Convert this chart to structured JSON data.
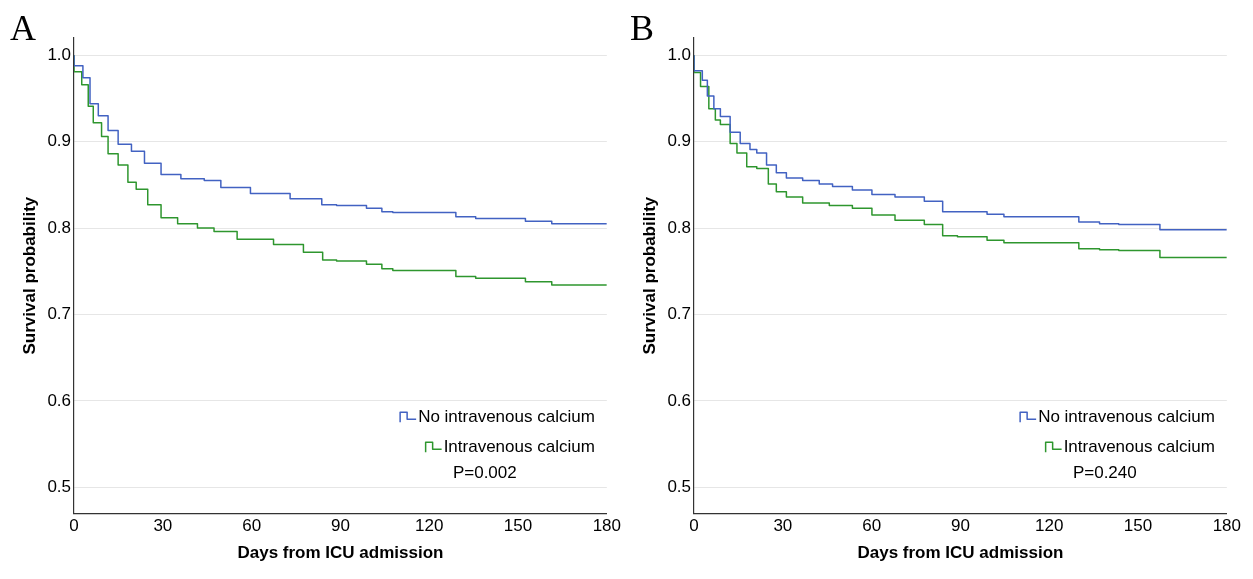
{
  "chart_data": [
    {
      "type": "step",
      "title": "A",
      "xlabel": "Days from ICU admission",
      "ylabel": "Survival probability",
      "xlim": [
        0,
        180
      ],
      "xticks": [
        0,
        30,
        60,
        90,
        120,
        150,
        180
      ],
      "ylim": [
        0.47,
        1.02
      ],
      "yticks": [
        {
          "value": 0.5,
          "label": "0.5"
        },
        {
          "value": 0.6,
          "label": "0.6"
        },
        {
          "value": 0.7,
          "label": "0.7"
        },
        {
          "value": 0.8,
          "label": "0.8"
        },
        {
          "value": 0.9,
          "label": "0.9"
        },
        {
          "value": 1,
          "label": "1.0"
        }
      ],
      "grid": "y",
      "legend": "bottom right",
      "annotations": [
        "P=0.002"
      ],
      "series": [
        {
          "name": "No intravenous calcium",
          "color": "#4262c2",
          "x": [
            0,
            3,
            5.4,
            8.2,
            11.5,
            14.9,
            19.4,
            23.8,
            29.4,
            36.1,
            44,
            49.6,
            59.6,
            73,
            83.7,
            88.7,
            98.8,
            104,
            107.7,
            129,
            135.7,
            152.5,
            161.4,
            172.6,
            180
          ],
          "values": [
            1,
            0.988,
            0.974,
            0.944,
            0.93,
            0.913,
            0.897,
            0.889,
            0.875,
            0.862,
            0.857,
            0.855,
            0.847,
            0.84,
            0.834,
            0.827,
            0.826,
            0.823,
            0.819,
            0.818,
            0.813,
            0.811,
            0.808,
            0.805,
            0.805
          ]
        },
        {
          "name": "Intravenous calcium",
          "color": "#2e962e",
          "x": [
            0,
            2.6,
            4.8,
            6.5,
            9.3,
            11.5,
            14.9,
            18.2,
            21,
            24.9,
            29.4,
            35,
            41.7,
            47.3,
            55.1,
            67.4,
            77.5,
            84,
            88.7,
            98.8,
            104,
            107.7,
            129,
            135.7,
            152.5,
            161.4,
            172.6,
            180
          ],
          "values": [
            1,
            0.981,
            0.966,
            0.941,
            0.922,
            0.906,
            0.886,
            0.873,
            0.853,
            0.845,
            0.827,
            0.812,
            0.805,
            0.8,
            0.796,
            0.787,
            0.781,
            0.772,
            0.763,
            0.762,
            0.758,
            0.753,
            0.751,
            0.744,
            0.742,
            0.738,
            0.734,
            0.734
          ]
        }
      ]
    },
    {
      "type": "step",
      "title": "B",
      "xlabel": "Days from ICU admission",
      "ylabel": "Survival probability",
      "xlim": [
        0,
        180
      ],
      "xticks": [
        0,
        30,
        60,
        90,
        120,
        150,
        180
      ],
      "ylim": [
        0.47,
        1.02
      ],
      "yticks": [
        {
          "value": 0.5,
          "label": "0.5"
        },
        {
          "value": 0.6,
          "label": "0.6"
        },
        {
          "value": 0.7,
          "label": "0.7"
        },
        {
          "value": 0.8,
          "label": "0.8"
        },
        {
          "value": 0.9,
          "label": "0.9"
        },
        {
          "value": 1,
          "label": "1.0"
        }
      ],
      "grid": "y",
      "legend": "bottom right",
      "annotations": [
        "P=0.240"
      ],
      "series": [
        {
          "name": "No intravenous calcium",
          "color": "#4262c2",
          "x": [
            0,
            2.8,
            4.5,
            6.7,
            8.9,
            12.2,
            15.6,
            18.9,
            21.2,
            24.5,
            27.8,
            31.2,
            36.7,
            42.3,
            46.8,
            53.5,
            60.1,
            67.9,
            77.8,
            84,
            89,
            99,
            104.7,
            108,
            130,
            137,
            143.5,
            157.4,
            162.4,
            180
          ],
          "values": [
            1,
            0.982,
            0.971,
            0.953,
            0.938,
            0.929,
            0.911,
            0.898,
            0.891,
            0.887,
            0.873,
            0.864,
            0.858,
            0.855,
            0.851,
            0.848,
            0.844,
            0.839,
            0.836,
            0.831,
            0.819,
            0.819,
            0.816,
            0.813,
            0.813,
            0.807,
            0.805,
            0.804,
            0.798,
            0.798
          ]
        },
        {
          "name": "Intravenous calcium",
          "color": "#2e962e",
          "x": [
            0,
            2.2,
            5,
            7.2,
            8.9,
            12.2,
            14.5,
            17.8,
            21.2,
            25.1,
            27.8,
            31.2,
            36.7,
            45.7,
            53.5,
            60.1,
            67.9,
            77.8,
            84,
            89,
            99,
            104.7,
            108,
            130,
            137,
            143.5,
            157.4,
            162.4,
            180
          ],
          "values": [
            1,
            0.98,
            0.964,
            0.938,
            0.925,
            0.92,
            0.898,
            0.887,
            0.871,
            0.869,
            0.851,
            0.842,
            0.836,
            0.829,
            0.826,
            0.823,
            0.815,
            0.809,
            0.804,
            0.791,
            0.79,
            0.786,
            0.783,
            0.783,
            0.776,
            0.775,
            0.774,
            0.766,
            0.766
          ]
        }
      ]
    }
  ]
}
